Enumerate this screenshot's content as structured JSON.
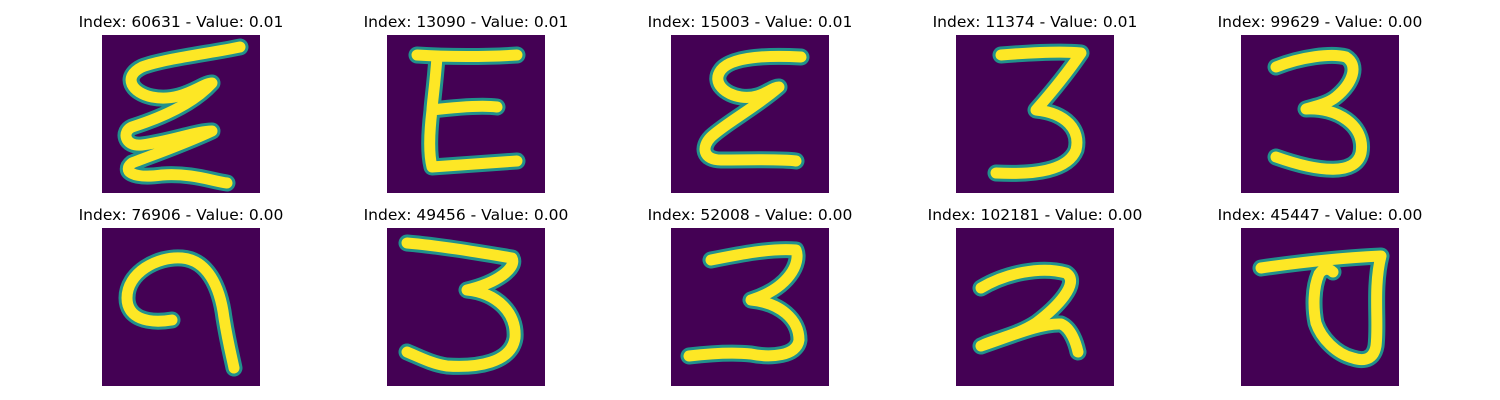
{
  "panels": [
    {
      "title": "Index: 60631 - Value: 0.01",
      "glyph": "sigma-like-e"
    },
    {
      "title": "Index: 13090 - Value: 0.01",
      "glyph": "letter-e"
    },
    {
      "title": "Index: 15003 - Value: 0.01",
      "glyph": "sigma-like-e"
    },
    {
      "title": "Index: 11374 - Value: 0.01",
      "glyph": "digit-3"
    },
    {
      "title": "Index: 99629 - Value: 0.00",
      "glyph": "digit-3"
    },
    {
      "title": "Index: 76906 - Value: 0.00",
      "glyph": "hook-9"
    },
    {
      "title": "Index: 49456 - Value: 0.00",
      "glyph": "digit-3"
    },
    {
      "title": "Index: 52008 - Value: 0.00",
      "glyph": "digit-3"
    },
    {
      "title": "Index: 102181 - Value: 0.00",
      "glyph": "digit-2"
    },
    {
      "title": "Index: 45447 - Value: 0.00",
      "glyph": "loop-glyph"
    }
  ],
  "colors": {
    "background": "#440154",
    "stroke_edge": "#21918c",
    "stroke_core": "#fde725"
  }
}
